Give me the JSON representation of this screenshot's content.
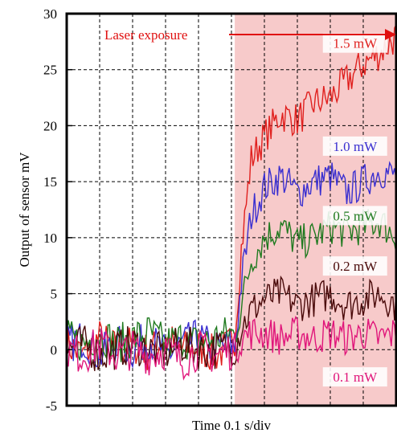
{
  "chart_data": {
    "type": "line",
    "xlabel": "Time 0.1 s/div",
    "ylabel": "Output of sensor  mV",
    "ylim": [
      -5,
      30
    ],
    "yticks": [
      "30",
      "25",
      "20",
      "15",
      "10",
      "5",
      "0",
      "-5"
    ],
    "ytick_values": [
      30,
      25,
      20,
      15,
      10,
      5,
      0,
      -5
    ],
    "xlim": [
      0,
      10
    ],
    "x_divisions": 10,
    "grid": true,
    "exposure": {
      "label": "Laser exposure",
      "start": 5.1,
      "end": 10,
      "color": "#f7caca"
    },
    "series": [
      {
        "name": "1.5 mW",
        "color": "#e0201e",
        "label_x": 8.75,
        "label_y": 27.3,
        "x": [
          0,
          0.5,
          1,
          1.5,
          2,
          2.5,
          3,
          3.5,
          4,
          4.5,
          5,
          5.1,
          5.3,
          5.6,
          6,
          6.5,
          7,
          7.5,
          8,
          8.5,
          9,
          9.5,
          10
        ],
        "y": [
          0.5,
          -0.5,
          1,
          0,
          0.5,
          -0.3,
          1,
          0,
          0.3,
          -0.5,
          0.5,
          1,
          9,
          17,
          19,
          21,
          20.5,
          22,
          22.5,
          24,
          25.5,
          26.5,
          28
        ]
      },
      {
        "name": "1.0 mW",
        "color": "#3a2fd0",
        "label_x": 8.75,
        "label_y": 18.1,
        "x": [
          0,
          0.5,
          1,
          1.5,
          2,
          2.5,
          3,
          3.5,
          4,
          4.5,
          5,
          5.1,
          5.3,
          5.6,
          6,
          6.5,
          7,
          7.5,
          8,
          8.5,
          9,
          9.5,
          10
        ],
        "y": [
          0.5,
          1,
          -0.5,
          0.5,
          0,
          1,
          -0.5,
          0.5,
          1,
          0,
          0.5,
          0,
          6,
          12,
          14.5,
          15.5,
          14,
          15,
          15.5,
          14,
          15,
          16,
          15.5
        ]
      },
      {
        "name": "0.5 mW",
        "color": "#1f7a1f",
        "label_x": 8.75,
        "label_y": 11.9,
        "x": [
          0,
          0.5,
          1,
          1.5,
          2,
          2.5,
          3,
          3.5,
          4,
          4.5,
          5,
          5.1,
          5.3,
          5.6,
          6,
          6.5,
          7,
          7.5,
          8,
          8.5,
          9,
          9.5,
          10
        ],
        "y": [
          1,
          0.5,
          1.5,
          0.5,
          1,
          1.5,
          0.5,
          1,
          0.5,
          1,
          1.5,
          1,
          4,
          8,
          10,
          11,
          9.5,
          10,
          11,
          10.5,
          11,
          11.5,
          10
        ]
      },
      {
        "name": "0.2 mW",
        "color": "#4a0a0a",
        "label_x": 8.75,
        "label_y": 7.4,
        "x": [
          0,
          0.5,
          1,
          1.5,
          2,
          2.5,
          3,
          3.5,
          4,
          4.5,
          5,
          5.1,
          5.3,
          5.6,
          6,
          6.5,
          7,
          7.5,
          8,
          8.5,
          9,
          9.5,
          10
        ],
        "y": [
          0,
          0.5,
          -0.5,
          0,
          0.5,
          0,
          -0.3,
          0.5,
          0,
          0,
          0.3,
          0,
          2,
          3.5,
          4.5,
          5,
          4,
          4.5,
          5,
          4,
          4.5,
          5,
          4
        ]
      },
      {
        "name": "0.1 mW",
        "color": "#e0157a",
        "label_x": 8.75,
        "label_y": -2.5,
        "x": [
          0,
          0.5,
          1,
          1.5,
          2,
          2.5,
          3,
          3.5,
          4,
          4.5,
          5,
          5.1,
          5.3,
          5.6,
          6,
          6.5,
          7,
          7.5,
          8,
          8.5,
          9,
          9.5,
          10
        ],
        "y": [
          0,
          -0.5,
          0.5,
          -0.5,
          0,
          -0.5,
          0,
          -1,
          0,
          -0.5,
          0,
          0,
          1,
          1.5,
          1.5,
          1,
          1.5,
          1,
          1.5,
          1,
          1.5,
          1,
          1.5
        ]
      }
    ]
  }
}
